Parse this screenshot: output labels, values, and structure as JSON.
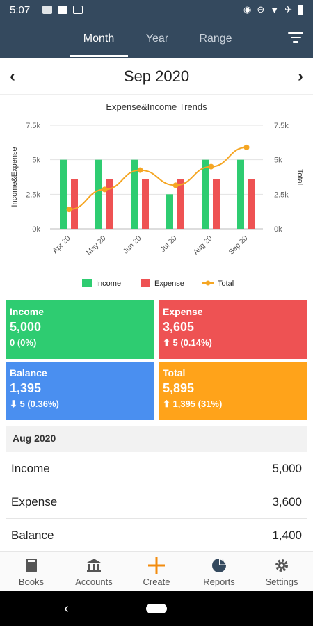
{
  "status_bar": {
    "time": "5:07"
  },
  "tabs": [
    {
      "label": "Month",
      "active": true
    },
    {
      "label": "Year",
      "active": false
    },
    {
      "label": "Range",
      "active": false
    }
  ],
  "period": {
    "title": "Sep 2020"
  },
  "chart_data": {
    "type": "bar",
    "title": "Expense&Income Trends",
    "categories": [
      "Apr 20",
      "May 20",
      "Jun 20",
      "Jul 20",
      "Aug 20",
      "Sep 20"
    ],
    "ylabel": "Income&Expense",
    "y2label": "Total",
    "ylim": [
      0,
      7500
    ],
    "y2lim": [
      0,
      7500
    ],
    "yticks": [
      "0k",
      "2.5k",
      "5k",
      "7.5k"
    ],
    "legend_position": "bottom",
    "series": [
      {
        "name": "Income",
        "type": "bar",
        "color": "#2ecc71",
        "values": [
          5000,
          5000,
          5000,
          2500,
          5000,
          5000
        ]
      },
      {
        "name": "Expense",
        "type": "bar",
        "color": "#ee5253",
        "values": [
          3600,
          3600,
          3600,
          3600,
          3600,
          3605
        ]
      },
      {
        "name": "Total",
        "type": "line",
        "axis": "right",
        "color": "#f5a623",
        "values": [
          1400,
          2850,
          4250,
          3150,
          4500,
          5895
        ]
      }
    ]
  },
  "cards": {
    "income": {
      "label": "Income",
      "value": "5,000",
      "change": "0 (0%)",
      "color": "#2ecc71"
    },
    "expense": {
      "label": "Expense",
      "value": "3,605",
      "change": "⬆ 5 (0.14%)",
      "color": "#ee5253"
    },
    "balance": {
      "label": "Balance",
      "value": "1,395",
      "change": "⬇ 5 (0.36%)",
      "color": "#4a8ff0"
    },
    "total": {
      "label": "Total",
      "value": "5,895",
      "change": "⬆ 1,395 (31%)",
      "color": "#ffa31a"
    }
  },
  "previous": {
    "heading": "Aug 2020",
    "rows": [
      {
        "label": "Income",
        "value": "5,000"
      },
      {
        "label": "Expense",
        "value": "3,600"
      },
      {
        "label": "Balance",
        "value": "1,400"
      }
    ]
  },
  "bottom_nav": [
    {
      "label": "Books",
      "icon": "book-icon"
    },
    {
      "label": "Accounts",
      "icon": "bank-icon"
    },
    {
      "label": "Create",
      "icon": "plus-icon"
    },
    {
      "label": "Reports",
      "icon": "pie-chart-icon"
    },
    {
      "label": "Settings",
      "icon": "gear-icon"
    }
  ]
}
